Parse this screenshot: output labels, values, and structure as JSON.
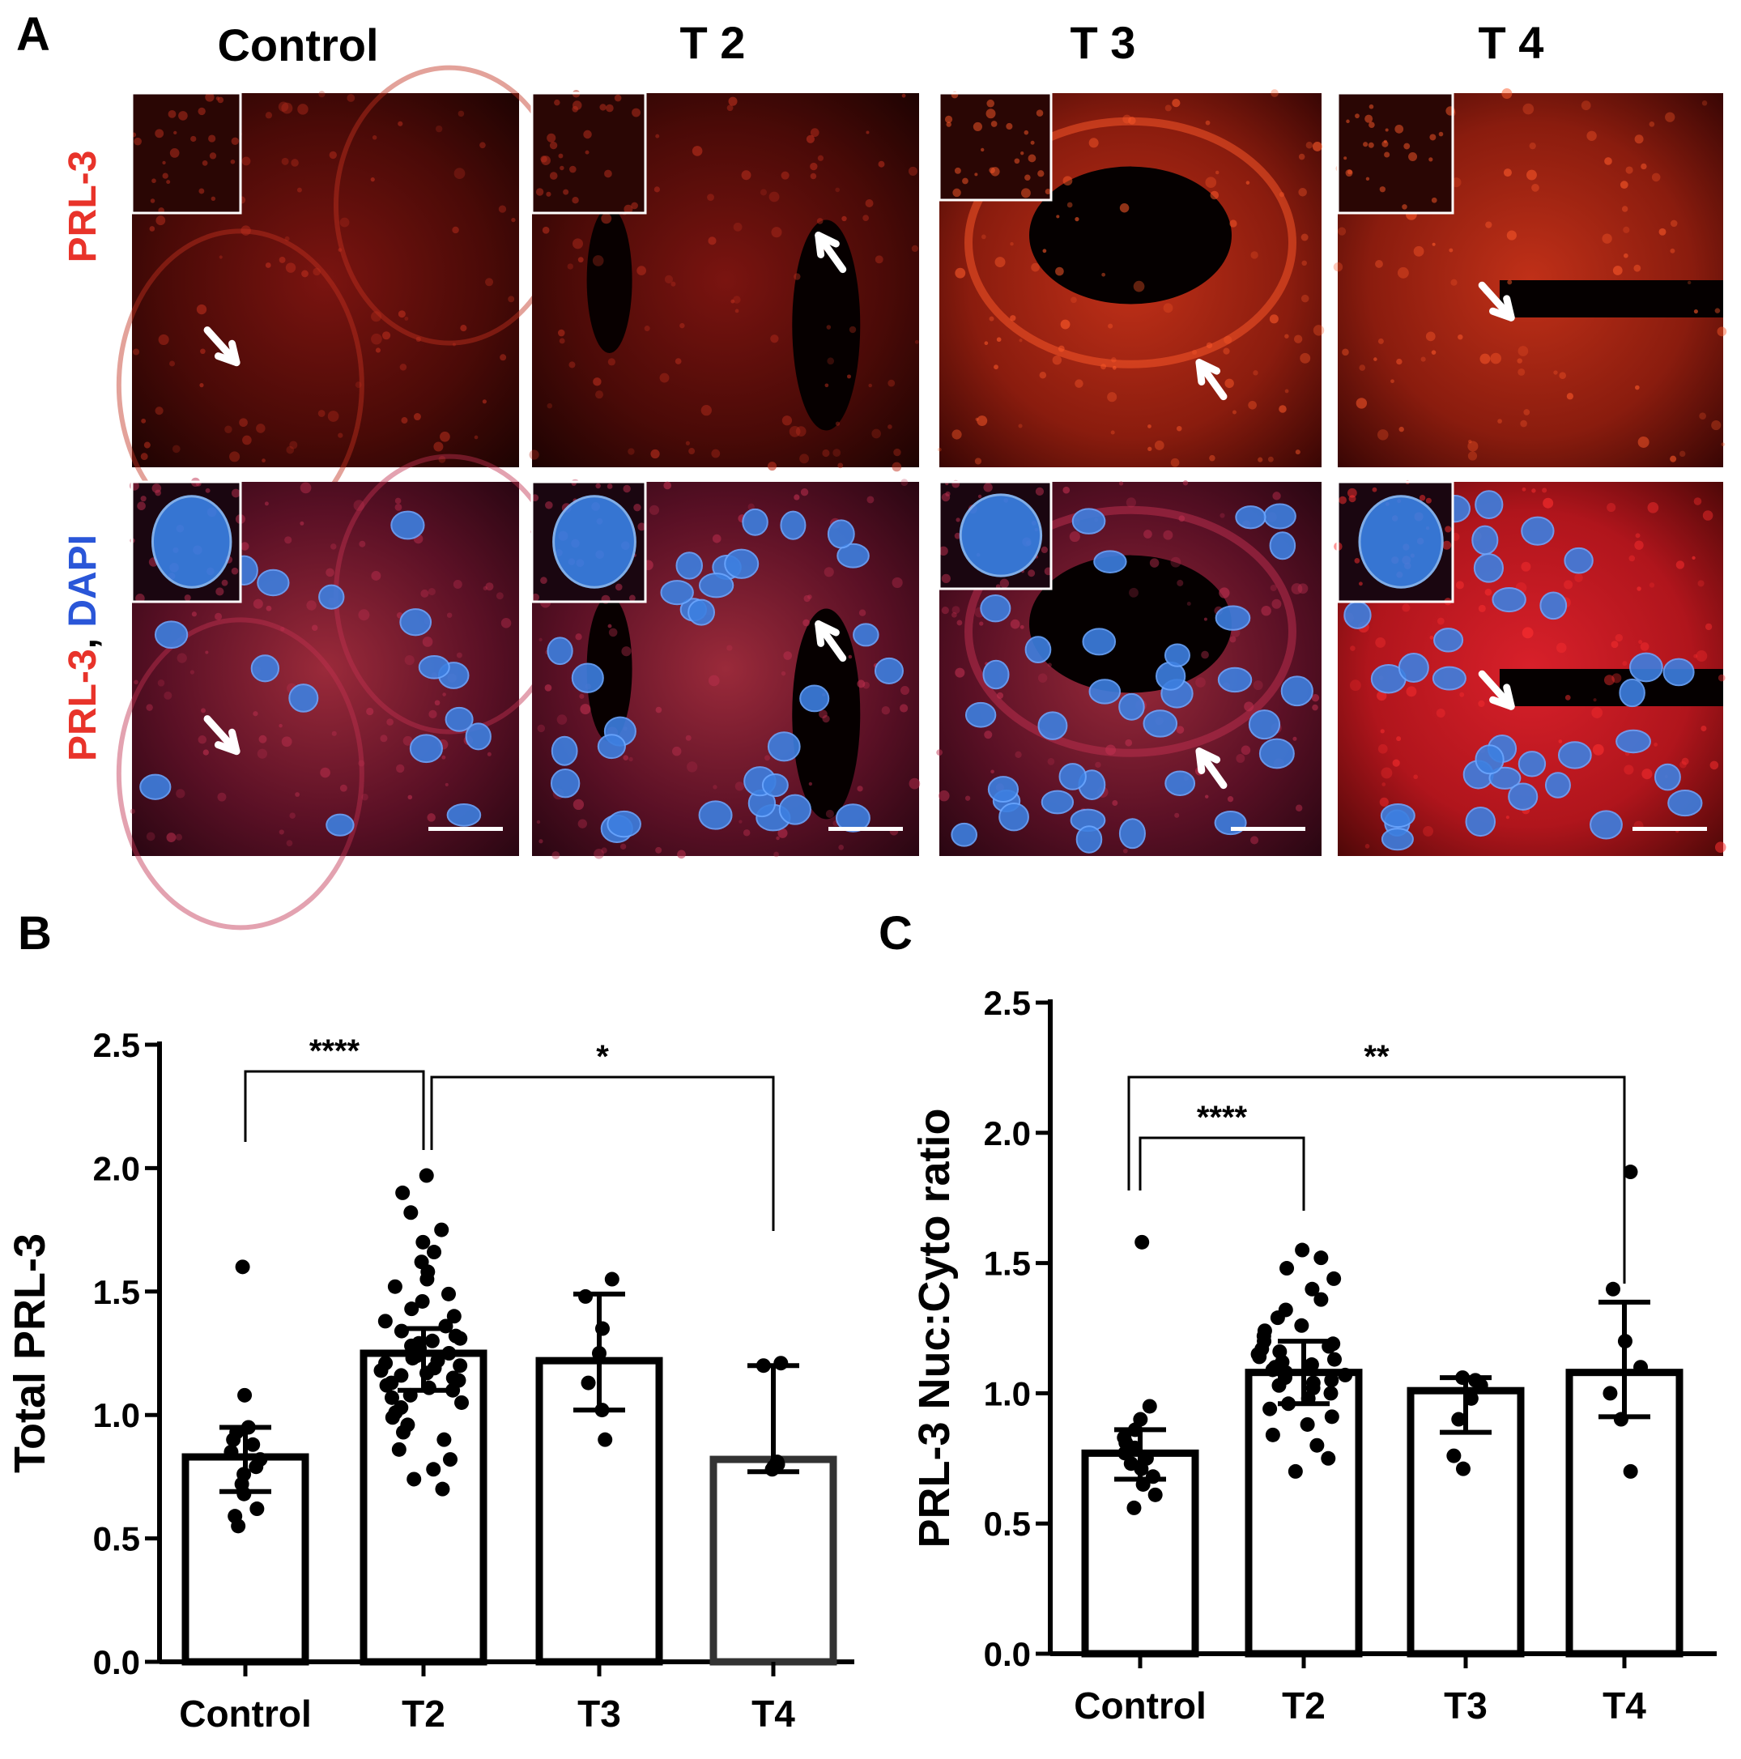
{
  "panels": {
    "a": "A",
    "b": "B",
    "c": "C"
  },
  "micrographs": {
    "columns": [
      "Control",
      "T 2",
      "T 3",
      "T 4"
    ],
    "row1_label": "PRL-3",
    "row2_label_red": "PRL-3",
    "row2_label_sep": ", ",
    "row2_label_blue": "DAPI",
    "colors": {
      "prl3": "#e8332a",
      "dapi": "#2a56d8",
      "tissue_red": "#b5201b",
      "nuclei": "#4d8fe6"
    }
  },
  "chart_data": [
    {
      "type": "bar",
      "panel": "B",
      "ylabel": "Total PRL-3",
      "xlabel": "",
      "categories": [
        "Control",
        "T2",
        "T3",
        "T4"
      ],
      "values": [
        0.83,
        1.25,
        1.22,
        0.82
      ],
      "error": [
        [
          0.69,
          0.95
        ],
        [
          1.1,
          1.35
        ],
        [
          1.02,
          1.49
        ],
        [
          0.77,
          1.2
        ]
      ],
      "ylim": [
        0,
        2.5
      ],
      "yticks": [
        "0.0",
        "0.5",
        "1.0",
        "1.5",
        "2.0",
        "2.5"
      ],
      "points": [
        [
          0.55,
          0.59,
          0.62,
          0.68,
          0.72,
          0.76,
          0.79,
          0.82,
          0.85,
          0.88,
          0.9,
          0.93,
          0.95,
          1.08,
          1.6
        ],
        [
          0.7,
          0.74,
          0.78,
          0.82,
          0.86,
          0.9,
          0.93,
          0.96,
          0.99,
          1.01,
          1.03,
          1.05,
          1.07,
          1.08,
          1.1,
          1.11,
          1.12,
          1.13,
          1.14,
          1.15,
          1.16,
          1.17,
          1.18,
          1.19,
          1.2,
          1.21,
          1.22,
          1.23,
          1.24,
          1.25,
          1.26,
          1.27,
          1.28,
          1.29,
          1.3,
          1.31,
          1.32,
          1.34,
          1.36,
          1.38,
          1.4,
          1.43,
          1.46,
          1.49,
          1.52,
          1.55,
          1.58,
          1.62,
          1.66,
          1.7,
          1.75,
          1.82,
          1.9,
          1.97
        ],
        [
          0.9,
          1.02,
          1.13,
          1.25,
          1.35,
          1.48,
          1.55
        ],
        [
          0.78,
          0.79,
          0.8,
          0.81,
          1.2,
          1.21
        ]
      ],
      "significance": [
        {
          "label": "****",
          "from": "Control",
          "to": "T2"
        },
        {
          "label": "*",
          "from": "T2",
          "to": "T4"
        }
      ]
    },
    {
      "type": "bar",
      "panel": "C",
      "ylabel": "PRL-3 Nuc:Cyto ratio",
      "xlabel": "",
      "categories": [
        "Control",
        "T2",
        "T3",
        "T4"
      ],
      "values": [
        0.77,
        1.08,
        1.01,
        1.08
      ],
      "error": [
        [
          0.67,
          0.86
        ],
        [
          0.96,
          1.2
        ],
        [
          0.85,
          1.06
        ],
        [
          0.91,
          1.35
        ]
      ],
      "ylim": [
        0,
        2.5
      ],
      "yticks": [
        "0.0",
        "0.5",
        "1.0",
        "1.5",
        "2.0",
        "2.5"
      ],
      "points": [
        [
          0.56,
          0.61,
          0.65,
          0.68,
          0.71,
          0.73,
          0.75,
          0.77,
          0.79,
          0.81,
          0.83,
          0.86,
          0.9,
          0.95,
          1.58
        ],
        [
          0.7,
          0.75,
          0.8,
          0.84,
          0.88,
          0.91,
          0.94,
          0.96,
          0.98,
          1.0,
          1.02,
          1.03,
          1.04,
          1.05,
          1.06,
          1.07,
          1.08,
          1.09,
          1.1,
          1.11,
          1.12,
          1.13,
          1.14,
          1.15,
          1.16,
          1.17,
          1.18,
          1.19,
          1.2,
          1.22,
          1.24,
          1.26,
          1.29,
          1.32,
          1.36,
          1.4,
          1.44,
          1.48,
          1.52,
          1.55
        ],
        [
          0.71,
          0.76,
          0.9,
          0.98,
          1.03,
          1.05,
          1.06
        ],
        [
          0.7,
          0.9,
          1.0,
          1.1,
          1.2,
          1.4,
          1.85
        ]
      ],
      "significance": [
        {
          "label": "****",
          "from": "Control",
          "to": "T2"
        },
        {
          "label": "**",
          "from": "Control",
          "to": "T4"
        }
      ]
    }
  ]
}
